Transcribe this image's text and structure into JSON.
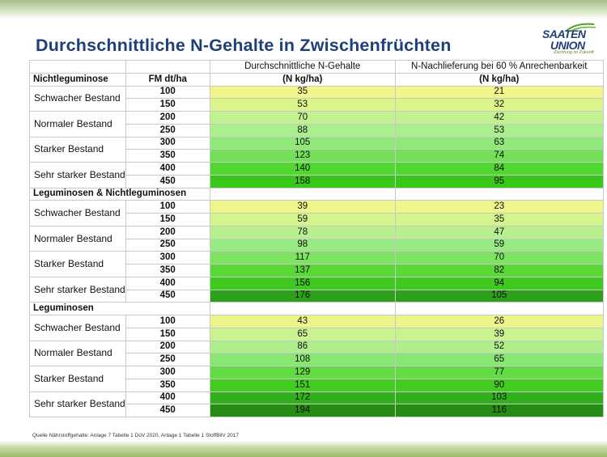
{
  "title": "Durchschnittliche N-Gehalte in Zwischenfrüchten",
  "logo": {
    "line1": "SAATEN",
    "line2": "UNION",
    "tagline": "Züchtung ist Zukunft"
  },
  "header": {
    "col_fm": "FM dt/ha",
    "col_n": "Durchschnittliche N-Gehalte",
    "col_n_unit": "(N kg/ha)",
    "col_nl": "N-Nachlieferung bei 60 % Anrechenbarkeit",
    "col_nl_unit": "(N kg/ha)"
  },
  "groups": [
    {
      "name": "Nichtleguminose",
      "name_in_header": true,
      "bestand": [
        {
          "label": "Schwacher Bestand",
          "rows": [
            {
              "fm": "100",
              "n": "35",
              "nl": "21",
              "color": "#f1f58a"
            },
            {
              "fm": "150",
              "n": "53",
              "nl": "32",
              "color": "#dcf58a"
            }
          ]
        },
        {
          "label": "Normaler Bestand",
          "rows": [
            {
              "fm": "200",
              "n": "70",
              "nl": "42",
              "color": "#c2f290"
            },
            {
              "fm": "250",
              "n": "88",
              "nl": "53",
              "color": "#abee8e"
            }
          ]
        },
        {
          "label": "Starker Bestand",
          "rows": [
            {
              "fm": "300",
              "n": "105",
              "nl": "63",
              "color": "#8fe879"
            },
            {
              "fm": "350",
              "n": "123",
              "nl": "74",
              "color": "#74e059"
            }
          ]
        },
        {
          "label": "Sehr starker Bestand",
          "rows": [
            {
              "fm": "400",
              "n": "140",
              "nl": "84",
              "color": "#52d630"
            },
            {
              "fm": "450",
              "n": "158",
              "nl": "95",
              "color": "#38c71a"
            }
          ]
        }
      ]
    },
    {
      "name": "Leguminosen & Nichtleguminosen",
      "name_in_header": false,
      "bestand": [
        {
          "label": "Schwacher Bestand",
          "rows": [
            {
              "fm": "100",
              "n": "39",
              "nl": "23",
              "color": "#eef58a"
            },
            {
              "fm": "150",
              "n": "59",
              "nl": "35",
              "color": "#d4f48e"
            }
          ]
        },
        {
          "label": "Normaler Bestand",
          "rows": [
            {
              "fm": "200",
              "n": "78",
              "nl": "47",
              "color": "#b8f08f"
            },
            {
              "fm": "250",
              "n": "98",
              "nl": "59",
              "color": "#98ea82"
            }
          ]
        },
        {
          "label": "Starker Bestand",
          "rows": [
            {
              "fm": "300",
              "n": "117",
              "nl": "70",
              "color": "#7ee263"
            },
            {
              "fm": "350",
              "n": "137",
              "nl": "82",
              "color": "#5ad838"
            }
          ]
        },
        {
          "label": "Sehr starker Bestand",
          "rows": [
            {
              "fm": "400",
              "n": "156",
              "nl": "94",
              "color": "#3ec820"
            },
            {
              "fm": "450",
              "n": "176",
              "nl": "105",
              "color": "#2ca018"
            }
          ]
        }
      ]
    },
    {
      "name": "Leguminosen",
      "name_in_header": false,
      "bestand": [
        {
          "label": "Schwacher Bestand",
          "rows": [
            {
              "fm": "100",
              "n": "43",
              "nl": "26",
              "color": "#ecf58a"
            },
            {
              "fm": "150",
              "n": "65",
              "nl": "39",
              "color": "#caf38f"
            }
          ]
        },
        {
          "label": "Normaler Bestand",
          "rows": [
            {
              "fm": "200",
              "n": "86",
              "nl": "52",
              "color": "#aeee8d"
            },
            {
              "fm": "250",
              "n": "108",
              "nl": "65",
              "color": "#88e672"
            }
          ]
        },
        {
          "label": "Starker Bestand",
          "rows": [
            {
              "fm": "300",
              "n": "129",
              "nl": "77",
              "color": "#64db44"
            },
            {
              "fm": "350",
              "n": "151",
              "nl": "90",
              "color": "#42cc22"
            }
          ]
        },
        {
          "label": "Sehr starker Bestand",
          "rows": [
            {
              "fm": "400",
              "n": "172",
              "nl": "103",
              "color": "#30b01a"
            },
            {
              "fm": "450",
              "n": "194",
              "nl": "116",
              "color": "#268c14"
            }
          ]
        }
      ]
    }
  ],
  "source": "Quelle Nährstoffgehalte: Anlage 7 Tabelle 1 DüV 2020, Anlage 1 Tabelle 1 StoffBilV 2017"
}
